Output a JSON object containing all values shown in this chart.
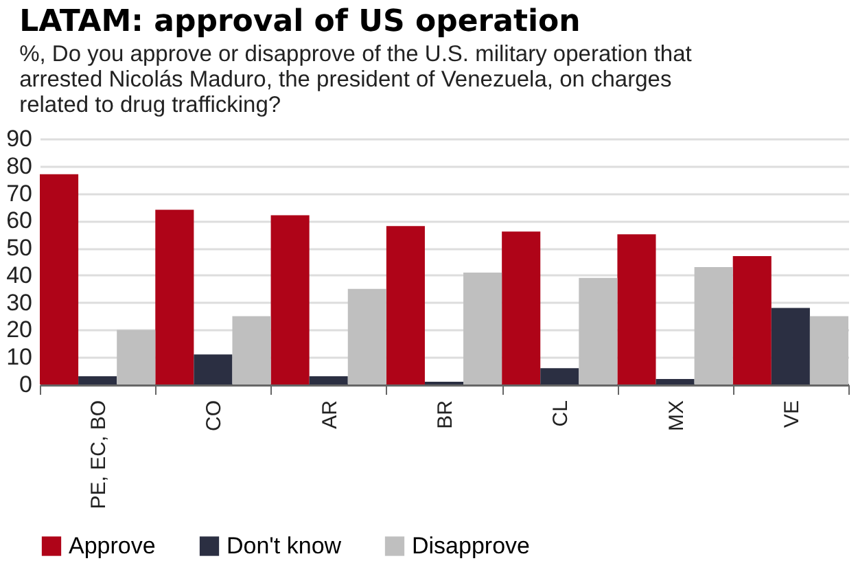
{
  "chart_data": {
    "type": "bar",
    "title": "LATAM: approval of US operation",
    "subtitle": "%, Do you approve or disapprove of the U.S. military operation that arrested Nicolás Maduro, the president of Venezuela, on charges related to drug trafficking?",
    "categories": [
      "PE, EC, BO",
      "CO",
      "AR",
      "BR",
      "CL",
      "MX",
      "VE"
    ],
    "series": [
      {
        "name": "Approve",
        "color": "#af0418",
        "values": [
          77,
          64,
          62,
          58,
          56,
          55,
          47
        ]
      },
      {
        "name": "Don't know",
        "color": "#2b2f42",
        "values": [
          3,
          11,
          3,
          1,
          6,
          2,
          28
        ]
      },
      {
        "name": "Disapprove",
        "color": "#bfbfbf",
        "values": [
          20,
          25,
          35,
          41,
          39,
          43,
          25
        ]
      }
    ],
    "ylim": [
      0,
      90
    ],
    "yticks": [
      0,
      10,
      20,
      30,
      40,
      50,
      60,
      70,
      80,
      90
    ],
    "grid": "y",
    "legend": "bottom"
  }
}
